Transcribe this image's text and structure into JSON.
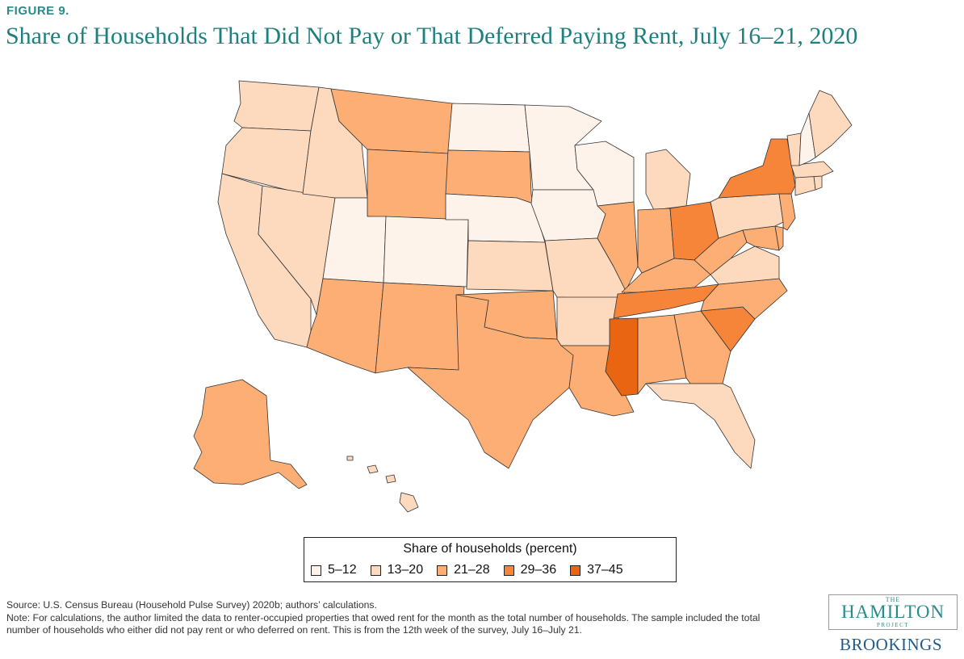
{
  "figure_label": "FIGURE 9.",
  "title": "Share of Households That Did Not Pay or That Deferred Paying Rent, July 16–21, 2020",
  "legend": {
    "title": "Share of households (percent)",
    "bins": [
      {
        "label": "5–12",
        "color": "#fef3ea"
      },
      {
        "label": "13–20",
        "color": "#fdd9bd"
      },
      {
        "label": "21–28",
        "color": "#fcae74"
      },
      {
        "label": "29–36",
        "color": "#f6853a"
      },
      {
        "label": "37–45",
        "color": "#ea6511"
      }
    ]
  },
  "state_bins": {
    "WA": 1,
    "OR": 1,
    "CA": 1,
    "NV": 1,
    "ID": 1,
    "UT": 0,
    "AZ": 2,
    "MT": 2,
    "WY": 2,
    "CO": 0,
    "NM": 2,
    "ND": 0,
    "SD": 2,
    "NE": 0,
    "KS": 1,
    "OK": 2,
    "TX": 2,
    "MN": 0,
    "IA": 0,
    "MO": 1,
    "AR": 1,
    "LA": 2,
    "WI": 0,
    "IL": 2,
    "MI": 1,
    "IN": 2,
    "OH": 3,
    "KY": 2,
    "TN": 3,
    "MS": 4,
    "AL": 2,
    "GA": 2,
    "FL": 1,
    "SC": 3,
    "NC": 2,
    "VA": 1,
    "WV": 2,
    "MD": 2,
    "DE": 2,
    "PA": 1,
    "NJ": 2,
    "NY": 3,
    "CT": 1,
    "RI": 1,
    "MA": 1,
    "VT": 1,
    "NH": 0,
    "ME": 1,
    "AK": 2,
    "HI": 1
  },
  "source": "Source: U.S. Census Bureau (Household Pulse Survey) 2020b; authors’ calculations.",
  "note": "Note: For calculations, the author limited the data to renter-occupied properties that owed rent for the month as the total number of households. The sample included the total number of households who either did not pay rent or who deferred on rent. This is from the 12th week of the survey, July 16–July 21.",
  "logo": {
    "the": "THE",
    "name": "HAMILTON",
    "project": "PROJECT",
    "brookings": "BROOKINGS"
  }
}
